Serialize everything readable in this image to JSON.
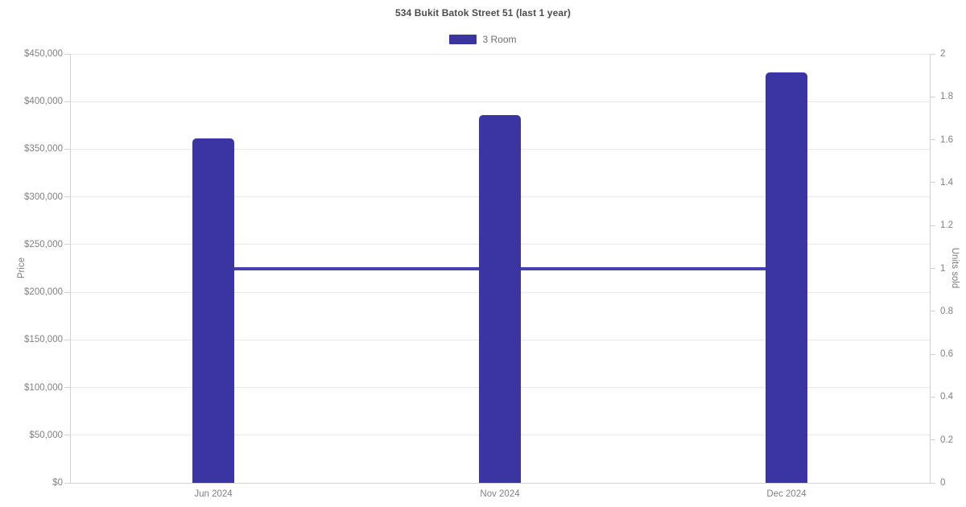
{
  "chart_data": {
    "type": "bar",
    "title": "534 Bukit Batok Street 51 (last 1 year)",
    "categories": [
      "Jun 2024",
      "Nov 2024",
      "Dec 2024"
    ],
    "series": [
      {
        "name": "3 Room",
        "role": "price-bars",
        "type": "bar",
        "axis": "left",
        "values": [
          361000,
          386000,
          431000
        ],
        "color": "#3b35a3"
      },
      {
        "name": "3 Room",
        "role": "units-sold-line",
        "type": "line",
        "axis": "right",
        "values": [
          1,
          1,
          1
        ],
        "color": "#4741ad"
      }
    ],
    "legend": [
      {
        "label": "3 Room",
        "color": "#3b35a3"
      }
    ],
    "legend_position": "top",
    "grid": "horizontal-only",
    "y_left": {
      "label": "Price",
      "min": 0,
      "max": 450000,
      "step": 50000,
      "tick_values": [
        0,
        50000,
        100000,
        150000,
        200000,
        250000,
        300000,
        350000,
        400000,
        450000
      ],
      "tick_labels": [
        "$0",
        "$50,000",
        "$100,000",
        "$150,000",
        "$200,000",
        "$250,000",
        "$300,000",
        "$350,000",
        "$400,000",
        "$450,000"
      ]
    },
    "y_right": {
      "label": "Units sold",
      "min": 0,
      "max": 2,
      "step": 0.2,
      "tick_values": [
        0,
        0.2,
        0.4,
        0.6,
        0.8,
        1,
        1.2,
        1.4,
        1.6,
        1.8,
        2
      ],
      "tick_labels": [
        "0",
        "0.2",
        "0.4",
        "0.6",
        "0.8",
        "1",
        "1.2",
        "1.4",
        "1.6",
        "1.8",
        "2"
      ]
    },
    "colors": {
      "bar": "#3b35a3",
      "line": "#4741ad",
      "gridline": "#e9e9e9",
      "axis_line": "#d2d2d2",
      "tick_text": "#818181",
      "title_text": "#4d4d4d",
      "legend_text": "#6e6e6e",
      "background": "#ffffff"
    }
  }
}
